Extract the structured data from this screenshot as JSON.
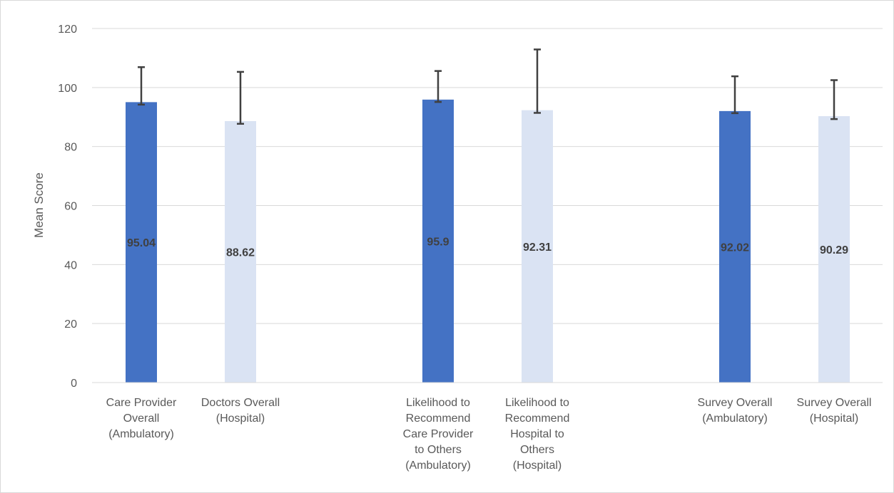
{
  "chart_data": {
    "type": "bar",
    "title": "",
    "ylabel": "Mean Score",
    "xlabel": "",
    "ylim": [
      0,
      120
    ],
    "yticks": [
      0,
      20,
      40,
      60,
      80,
      100,
      120
    ],
    "grid": true,
    "legend": "none",
    "categories": [
      [
        "Care Provider",
        "Overall",
        "(Ambulatory)"
      ],
      [
        "Doctors Overall",
        "(Hospital)"
      ],
      [
        "Likelihood to",
        "Recommend",
        "Care Provider",
        "to Others",
        "(Ambulatory)"
      ],
      [
        "Likelihood to",
        "Recommend",
        "Hospital to",
        "Others",
        "(Hospital)"
      ],
      [
        "Survey Overall",
        "(Ambulatory)"
      ],
      [
        "Survey Overall",
        "(Hospital)"
      ]
    ],
    "values": [
      95.04,
      88.62,
      95.9,
      92.31,
      92.02,
      90.29
    ],
    "labels": [
      "95.04",
      "88.62",
      "95.9",
      "92.31",
      "92.02",
      "90.29"
    ],
    "error_low": [
      94.2,
      87.7,
      95.1,
      91.4,
      91.3,
      89.3
    ],
    "error_high": [
      106.9,
      105.3,
      105.6,
      112.9,
      103.8,
      102.5
    ],
    "colors": [
      "#4472c4",
      "#dae3f3",
      "#4472c4",
      "#dae3f3",
      "#4472c4",
      "#dae3f3"
    ]
  }
}
